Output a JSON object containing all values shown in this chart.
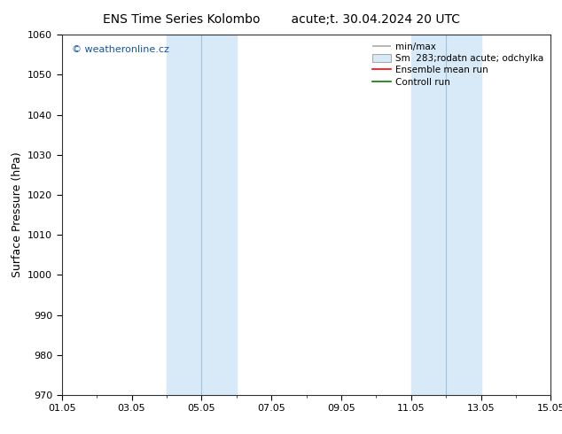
{
  "title_left": "ENS Time Series Kolombo",
  "title_right": "acute;t. 30.04.2024 20 UTC",
  "ylabel": "Surface Pressure (hPa)",
  "ylim": [
    970,
    1060
  ],
  "yticks": [
    970,
    980,
    990,
    1000,
    1010,
    1020,
    1030,
    1040,
    1050,
    1060
  ],
  "xlim": [
    0,
    14
  ],
  "xtick_labels": [
    "01.05",
    "03.05",
    "05.05",
    "07.05",
    "09.05",
    "11.05",
    "13.05",
    "15.05"
  ],
  "xtick_positions": [
    0,
    2,
    4,
    6,
    8,
    10,
    12,
    14
  ],
  "shaded_bands": [
    {
      "xmin": 3.0,
      "xmax": 5.0,
      "divider": 4.0
    },
    {
      "xmin": 10.0,
      "xmax": 12.0,
      "divider": 11.0
    }
  ],
  "shade_color": "#d8eaf8",
  "divider_color": "#a0c4e0",
  "watermark": "© weatheronline.cz",
  "legend_labels": [
    "min/max",
    "Sm  283;rodatn acute; odchylka",
    "Ensemble mean run",
    "Controll run"
  ],
  "legend_line_color": "#aaaaaa",
  "legend_patch_color": "#d8eaf8",
  "legend_patch_edge": "#aaaaaa",
  "ens_color": "red",
  "ctrl_color": "green",
  "bg_color": "#ffffff",
  "watermark_color": "#1155aa",
  "title_fontsize": 10,
  "tick_fontsize": 8,
  "ylabel_fontsize": 9,
  "legend_fontsize": 7.5,
  "watermark_fontsize": 8
}
